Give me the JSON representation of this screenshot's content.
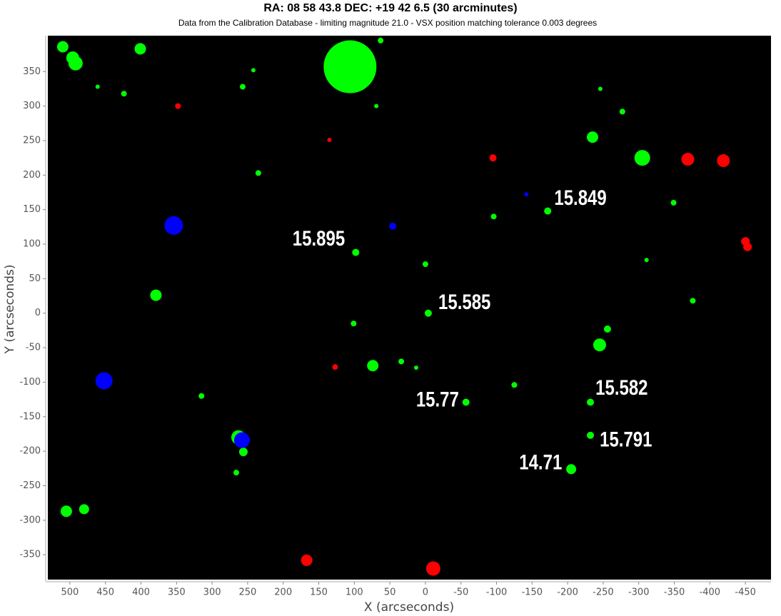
{
  "chart_data": {
    "type": "scatter",
    "title": "RA: 08 58 43.8  DEC: +19 42 6.5 (30 arcminutes)",
    "subtitle": "Data from the Calibration Database - limiting magnitude 21.0 - VSX position matching tolerance 0.003 degrees",
    "x_label": "X (arcseconds)",
    "y_label": "Y (arcseconds)",
    "xlim": [
      531,
      -486
    ],
    "ylim": [
      -386,
      402
    ],
    "xticks": [
      500,
      450,
      400,
      350,
      300,
      250,
      200,
      150,
      100,
      50,
      0,
      -50,
      -100,
      -150,
      -200,
      -250,
      -300,
      -350,
      -400,
      -450
    ],
    "yticks": [
      -350,
      -300,
      -250,
      -200,
      -150,
      -100,
      -50,
      0,
      50,
      100,
      150,
      200,
      250,
      300,
      350
    ],
    "background": "#000000",
    "series": [
      {
        "color": "#00ff00",
        "x": [
          510,
          496,
          492,
          401,
          106,
          63,
          461,
          424,
          242,
          257,
          69,
          235,
          379,
          315,
          263,
          256,
          266,
          505,
          480,
          98,
          0,
          -4,
          101,
          74,
          34,
          13,
          -57,
          -96,
          -125,
          -172,
          -235,
          -246,
          -277,
          -305,
          -349,
          -311,
          -376,
          -256,
          -245,
          -232,
          -232,
          -205
        ],
        "y": [
          386,
          370,
          362,
          383,
          357,
          395,
          328,
          318,
          352,
          328,
          300,
          203,
          26,
          -120,
          -180,
          -201,
          -231,
          -287,
          -284,
          88,
          71,
          0,
          -15,
          -76,
          -70,
          -79,
          -129,
          140,
          -104,
          148,
          255,
          325,
          292,
          225,
          160,
          77,
          18,
          -23,
          -46,
          -129,
          -177,
          -226
        ],
        "sizes": [
          8,
          9,
          10,
          8,
          37,
          4,
          3,
          4,
          3,
          4,
          3,
          4,
          8,
          4,
          10,
          6,
          4,
          8,
          7,
          5,
          4,
          5,
          4,
          8,
          4,
          3,
          5,
          4,
          4,
          5,
          8,
          3,
          4,
          11,
          4,
          3,
          4,
          5,
          9,
          5,
          5,
          7
        ]
      },
      {
        "color": "#ff0000",
        "x": [
          348,
          135,
          -95,
          -369,
          -419,
          -450,
          -453,
          127,
          167,
          -11
        ],
        "y": [
          300,
          251,
          225,
          223,
          221,
          104,
          96,
          -78,
          -358,
          -370
        ],
        "sizes": [
          4,
          3,
          5,
          9,
          9,
          6,
          6,
          4,
          8,
          10
        ]
      },
      {
        "color": "#0000ff",
        "x": [
          354,
          46,
          -142,
          452,
          258
        ],
        "y": [
          127,
          126,
          172,
          -98,
          -184
        ],
        "sizes": [
          13,
          5,
          3,
          12,
          11
        ]
      }
    ],
    "annotations": [
      {
        "text": "15.849",
        "x": -218,
        "y": 165
      },
      {
        "text": "15.895",
        "x": 150,
        "y": 106
      },
      {
        "text": "15.585",
        "x": -55,
        "y": 14
      },
      {
        "text": "15.77",
        "x": -17,
        "y": -127
      },
      {
        "text": "15.582",
        "x": -276,
        "y": -110
      },
      {
        "text": "15.791",
        "x": -282,
        "y": -185
      },
      {
        "text": "14.71",
        "x": -162,
        "y": -218
      }
    ]
  }
}
